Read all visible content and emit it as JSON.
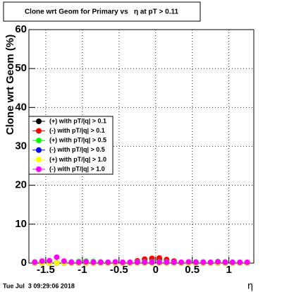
{
  "chart_data": {
    "type": "scatter",
    "title": "Clone wrt Geom for Primary vs   η at pT > 0.11",
    "y_label": "Clone wrt Geom (%)",
    "x_label": "η",
    "timestamp": "Tue Jul  3 09:29:06 2018",
    "xlim": [
      -1.73,
      1.34
    ],
    "ylim": [
      0,
      60
    ],
    "xticks": [
      -1.5,
      -1,
      -0.5,
      0,
      0.5,
      1
    ],
    "yticks": [
      0,
      10,
      20,
      30,
      40,
      50,
      60
    ],
    "grid": true,
    "x": [
      -1.65,
      -1.55,
      -1.45,
      -1.35,
      -1.25,
      -1.15,
      -1.05,
      -0.95,
      -0.85,
      -0.75,
      -0.65,
      -0.55,
      -0.45,
      -0.35,
      -0.25,
      -0.15,
      -0.05,
      0.05,
      0.15,
      0.25,
      0.35,
      0.45,
      0.55,
      0.65,
      0.75,
      0.85,
      0.95,
      1.05,
      1.15,
      1.25
    ],
    "series": [
      {
        "name": "(+) with pT/|q| > 0.1",
        "color": "#000000",
        "values": [
          0,
          0,
          0,
          0,
          0,
          0,
          0,
          0,
          0,
          0,
          0,
          0,
          0,
          0,
          0.5,
          0.9,
          1.1,
          1.0,
          0.7,
          0.4,
          0,
          0,
          0,
          0,
          0,
          0,
          0,
          0,
          0,
          0
        ]
      },
      {
        "name": "(-) with pT/|q| > 0.1",
        "color": "#ff0000",
        "values": [
          0,
          0,
          0,
          0,
          0,
          0,
          0,
          0,
          0,
          0,
          0,
          0,
          0,
          0,
          0.6,
          1.0,
          1.2,
          1.3,
          0.9,
          0.5,
          0,
          0,
          0,
          0,
          0,
          0,
          0,
          0,
          0,
          0
        ]
      },
      {
        "name": "(+) with pT/|q| > 0.5",
        "color": "#00ff00",
        "values": [
          0.3,
          0.2,
          0,
          0,
          0.2,
          0.3,
          0.4,
          0.5,
          0.4,
          0.3,
          0.2,
          0.1,
          0.1,
          0.2,
          0.3,
          0.3,
          0.3,
          0.3,
          0.3,
          0.2,
          0.1,
          0.2,
          0.3,
          0.3,
          0.2,
          0.4,
          0.3,
          0.2,
          0.1,
          0
        ]
      },
      {
        "name": "(-) with pT/|q| > 0.5",
        "color": "#0000ff",
        "values": [
          0,
          0.3,
          0.5,
          0,
          0,
          0,
          0,
          0,
          0,
          0,
          0,
          0,
          0,
          0,
          0,
          0,
          0,
          0,
          0,
          0,
          0,
          0,
          0,
          0,
          0,
          0,
          0,
          0,
          0,
          0
        ]
      },
      {
        "name": "(+) with pT/|q| > 1.0",
        "color": "#ffff00",
        "values": [
          0,
          0,
          0,
          0,
          0,
          0,
          0,
          0,
          0,
          0,
          0,
          0,
          0,
          0,
          0,
          0,
          0,
          0,
          0,
          0,
          0,
          0,
          0,
          0,
          0,
          0,
          0,
          0,
          0,
          0
        ]
      },
      {
        "name": "(-) with pT/|q| > 1.0",
        "color": "#ff00ff",
        "values": [
          0.2,
          0.5,
          0.6,
          1.5,
          0.5,
          0.2,
          0.2,
          0.3,
          0.2,
          0.2,
          0.2,
          0.3,
          0.2,
          0.2,
          0.2,
          0.2,
          0.2,
          0.2,
          0.2,
          0.2,
          0.2,
          0.3,
          0.2,
          0.2,
          0.2,
          0.3,
          0.2,
          0.2,
          0.2,
          0.2
        ]
      }
    ]
  }
}
